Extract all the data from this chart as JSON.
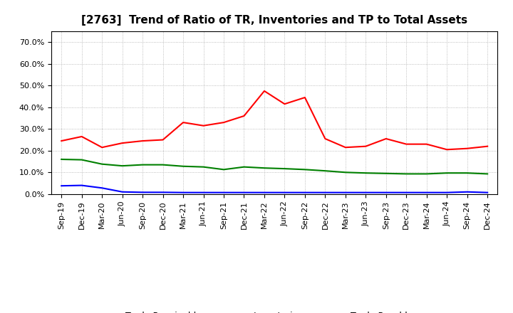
{
  "title": "[2763]  Trend of Ratio of TR, Inventories and TP to Total Assets",
  "x_labels": [
    "Sep-19",
    "Dec-19",
    "Mar-20",
    "Jun-20",
    "Sep-20",
    "Dec-20",
    "Mar-21",
    "Jun-21",
    "Sep-21",
    "Dec-21",
    "Mar-22",
    "Jun-22",
    "Sep-22",
    "Dec-22",
    "Mar-23",
    "Jun-23",
    "Sep-23",
    "Dec-23",
    "Mar-24",
    "Jun-24",
    "Sep-24",
    "Dec-24"
  ],
  "trade_receivables": [
    0.245,
    0.265,
    0.215,
    0.235,
    0.245,
    0.25,
    0.33,
    0.315,
    0.33,
    0.36,
    0.475,
    0.415,
    0.445,
    0.255,
    0.215,
    0.22,
    0.255,
    0.23,
    0.23,
    0.205,
    0.21,
    0.22
  ],
  "inventories": [
    0.038,
    0.04,
    0.028,
    0.01,
    0.008,
    0.008,
    0.007,
    0.007,
    0.007,
    0.007,
    0.007,
    0.007,
    0.007,
    0.007,
    0.007,
    0.007,
    0.007,
    0.007,
    0.007,
    0.007,
    0.01,
    0.007
  ],
  "trade_payables": [
    0.16,
    0.158,
    0.138,
    0.13,
    0.135,
    0.135,
    0.128,
    0.125,
    0.113,
    0.125,
    0.12,
    0.117,
    0.113,
    0.107,
    0.1,
    0.097,
    0.095,
    0.093,
    0.093,
    0.097,
    0.097,
    0.093
  ],
  "tr_color": "#ff0000",
  "inv_color": "#0000ff",
  "tp_color": "#008000",
  "ylim": [
    0.0,
    0.75
  ],
  "yticks": [
    0.0,
    0.1,
    0.2,
    0.3,
    0.4,
    0.5,
    0.6,
    0.7
  ],
  "background_color": "#ffffff",
  "plot_bg_color": "#ffffff",
  "grid_color": "#aaaaaa",
  "title_fontsize": 11,
  "tick_fontsize": 8,
  "legend_fontsize": 9
}
